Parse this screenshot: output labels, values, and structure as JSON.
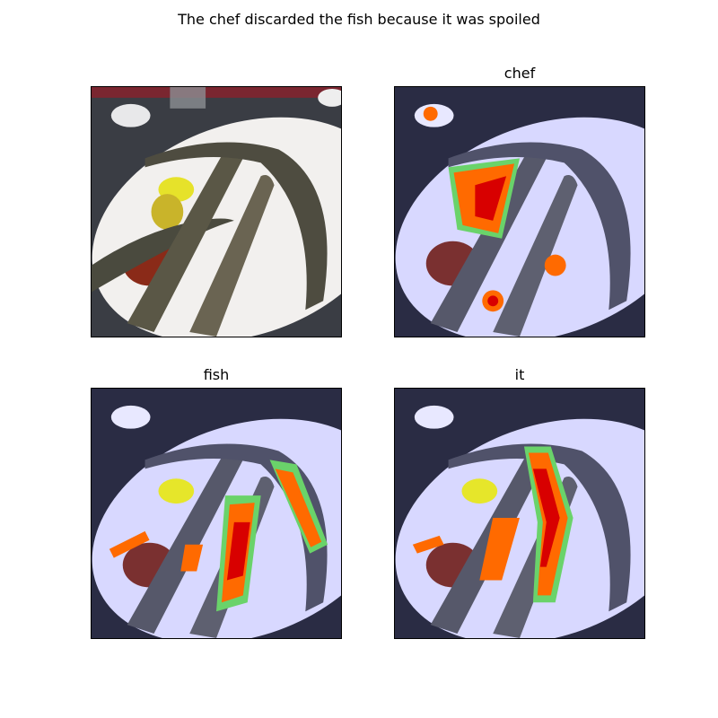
{
  "figure": {
    "title": "The chef discarded the fish because it was spoiled",
    "panels": [
      {
        "title": "",
        "kind": "original"
      },
      {
        "title": "chef",
        "kind": "heatmap"
      },
      {
        "title": "fish",
        "kind": "heatmap"
      },
      {
        "title": "it",
        "kind": "heatmap"
      }
    ]
  },
  "colors": {
    "background": "#ffffff",
    "overlay_tint": "#dcdcff",
    "heat_core": "#d80000",
    "heat_mid": "#ff6a00",
    "heat_edge": "#6ad36a"
  }
}
